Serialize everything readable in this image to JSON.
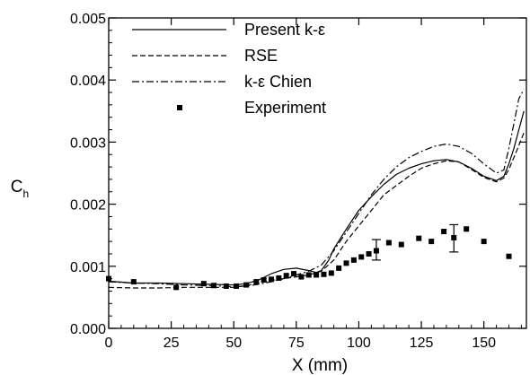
{
  "chart_data": {
    "type": "line",
    "title": "",
    "xlabel": "X (mm)",
    "ylabel": "C",
    "ylabel_sub": "h",
    "xlim": [
      0,
      167
    ],
    "ylim": [
      0.0,
      0.005
    ],
    "xticks": [
      0,
      25,
      50,
      75,
      100,
      125,
      150
    ],
    "xtick_labels": [
      "0",
      "25",
      "50",
      "75",
      "100",
      "125",
      "150"
    ],
    "yticks": [
      0.0,
      0.001,
      0.002,
      0.003,
      0.004,
      0.005
    ],
    "ytick_labels": [
      "0.000",
      "0.001",
      "0.002",
      "0.003",
      "0.004",
      "0.005"
    ],
    "grid": false,
    "legend_position": "top-left",
    "series": [
      {
        "name": "Present k-ε",
        "style": "solid",
        "x": [
          0,
          10,
          20,
          30,
          40,
          50,
          55,
          60,
          65,
          70,
          75,
          80,
          83,
          85,
          88,
          90,
          95,
          100,
          105,
          110,
          115,
          120,
          125,
          130,
          135,
          140,
          145,
          150,
          155,
          158,
          160,
          162,
          164,
          166
        ],
        "y": [
          0.00076,
          0.00073,
          0.00073,
          0.00072,
          0.00071,
          0.0007,
          0.00072,
          0.00078,
          0.00088,
          0.00095,
          0.00097,
          0.00093,
          0.0009,
          0.00093,
          0.0011,
          0.00128,
          0.0016,
          0.0019,
          0.00212,
          0.00232,
          0.00248,
          0.00258,
          0.00265,
          0.0027,
          0.00272,
          0.00268,
          0.00258,
          0.00245,
          0.00238,
          0.00245,
          0.00265,
          0.0029,
          0.0032,
          0.0035
        ]
      },
      {
        "name": "RSE",
        "style": "dashed",
        "x": [
          0,
          10,
          20,
          30,
          40,
          50,
          55,
          60,
          65,
          70,
          75,
          80,
          85,
          90,
          95,
          100,
          105,
          110,
          115,
          120,
          125,
          130,
          135,
          140,
          145,
          150,
          155,
          158,
          160,
          163,
          166
        ],
        "y": [
          0.00066,
          0.00065,
          0.00065,
          0.00066,
          0.00066,
          0.00066,
          0.00069,
          0.00073,
          0.00077,
          0.0008,
          0.00083,
          0.00086,
          0.00092,
          0.0011,
          0.0014,
          0.00165,
          0.0019,
          0.00215,
          0.0023,
          0.00245,
          0.00258,
          0.00265,
          0.0027,
          0.00268,
          0.00256,
          0.00243,
          0.00236,
          0.00242,
          0.00256,
          0.00285,
          0.00315
        ]
      },
      {
        "name": "k-ε Chien",
        "style": "dashdot",
        "x": [
          0,
          10,
          20,
          30,
          40,
          50,
          55,
          60,
          65,
          70,
          75,
          80,
          85,
          90,
          95,
          100,
          105,
          110,
          115,
          120,
          125,
          130,
          135,
          140,
          145,
          150,
          155,
          158,
          160,
          162,
          164,
          166
        ],
        "y": [
          0.00075,
          0.00073,
          0.00072,
          0.0007,
          0.00069,
          0.00067,
          0.00068,
          0.00071,
          0.00075,
          0.0008,
          0.00086,
          0.00092,
          0.00102,
          0.00125,
          0.00155,
          0.00185,
          0.00215,
          0.0024,
          0.0026,
          0.00275,
          0.00285,
          0.00293,
          0.00297,
          0.00293,
          0.00282,
          0.00265,
          0.0025,
          0.00255,
          0.0029,
          0.0033,
          0.0037,
          0.00385
        ]
      },
      {
        "name": "Experiment",
        "style": "markers",
        "x": [
          0,
          10,
          27,
          38,
          42,
          47,
          51,
          55,
          59,
          62,
          65,
          68,
          71,
          74,
          77,
          80,
          83,
          86,
          89,
          92,
          95,
          98,
          101,
          104,
          107,
          112,
          117,
          124,
          129,
          134,
          138,
          143,
          150,
          160
        ],
        "y": [
          0.0008,
          0.00075,
          0.00066,
          0.00072,
          0.00069,
          0.00068,
          0.00068,
          0.0007,
          0.00075,
          0.00078,
          0.00079,
          0.00081,
          0.00085,
          0.00088,
          0.00083,
          0.00086,
          0.00086,
          0.00087,
          0.00089,
          0.00097,
          0.00105,
          0.0011,
          0.00115,
          0.0012,
          0.00125,
          0.00138,
          0.00135,
          0.00145,
          0.0014,
          0.00156,
          0.00146,
          0.0016,
          0.0014,
          0.00116
        ]
      }
    ],
    "error_bars": [
      {
        "x": 107,
        "y": 0.00125,
        "low": 0.0011,
        "high": 0.00143
      },
      {
        "x": 138,
        "y": 0.00146,
        "low": 0.00123,
        "high": 0.00167
      }
    ]
  }
}
